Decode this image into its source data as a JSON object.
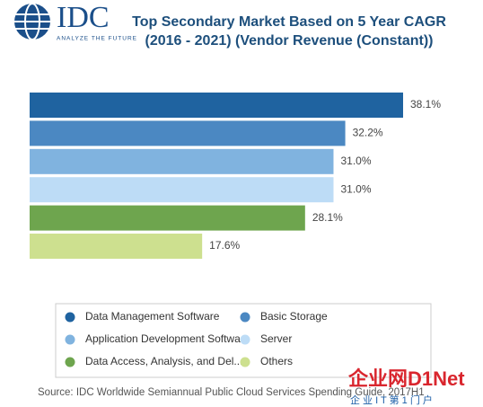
{
  "logo": {
    "name": "IDC",
    "tagline": "ANALYZE THE FUTURE"
  },
  "chart_data": {
    "type": "bar",
    "orientation": "horizontal",
    "title": "Top Secondary Market Based on 5 Year CAGR",
    "subtitle": "(2016 - 2021) (Vendor Revenue (Constant))",
    "categories": [
      "Data Management Software",
      "Basic Storage",
      "Application Development Softwa...",
      "Server",
      "Data Access, Analysis, and Del...",
      "Others"
    ],
    "values": [
      38.1,
      32.2,
      31.0,
      31.0,
      28.1,
      17.6
    ],
    "value_labels": [
      "38.1%",
      "32.2%",
      "31.0%",
      "31.0%",
      "28.1%",
      "17.6%"
    ],
    "colors": [
      "#1f63a0",
      "#4b88c2",
      "#80b3df",
      "#bddcf6",
      "#6ea54e",
      "#cde08f"
    ],
    "legend": "bottom"
  },
  "source": "Source: IDC Worldwide Semiannual Public Cloud Services Spending Guide, 2017H1",
  "watermark": {
    "brand": "企业网D1Net",
    "slogan": "企 业 I T 第 1 门 户"
  }
}
